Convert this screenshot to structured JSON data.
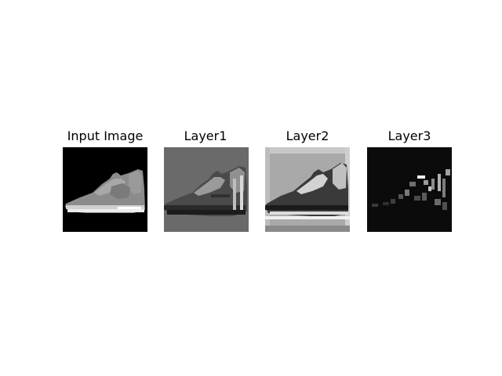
{
  "figure": {
    "panels": [
      {
        "title": "Input Image",
        "background": "#000000",
        "kind": "input"
      },
      {
        "title": "Layer1",
        "background": "#6a6a6a",
        "kind": "layer1"
      },
      {
        "title": "Layer2",
        "background": "#a9a9a9",
        "kind": "layer2"
      },
      {
        "title": "Layer3",
        "background": "#0b0b0b",
        "kind": "layer3"
      }
    ]
  }
}
